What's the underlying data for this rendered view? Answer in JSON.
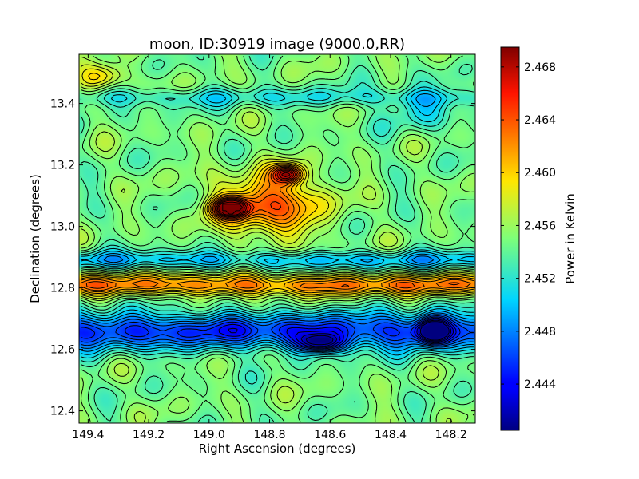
{
  "chart_data": {
    "type": "heatmap",
    "title": "moon, ID:30919 image (9000.0,RR)",
    "xlabel": "Right Ascension (degrees)",
    "ylabel": "Declination (degrees)",
    "xlim": [
      149.43,
      148.12
    ],
    "ylim": [
      12.36,
      13.56
    ],
    "x_ticks": [
      {
        "value": 149.4,
        "label": "149.4"
      },
      {
        "value": 149.2,
        "label": "149.2"
      },
      {
        "value": 149.0,
        "label": "149.0"
      },
      {
        "value": 148.8,
        "label": "148.8"
      },
      {
        "value": 148.6,
        "label": "148.6"
      },
      {
        "value": 148.4,
        "label": "148.4"
      },
      {
        "value": 148.2,
        "label": "148.2"
      }
    ],
    "y_ticks": [
      {
        "value": 12.4,
        "label": "12.4"
      },
      {
        "value": 12.6,
        "label": "12.6"
      },
      {
        "value": 12.8,
        "label": "12.8"
      },
      {
        "value": 13.0,
        "label": "13.0"
      },
      {
        "value": 13.2,
        "label": "13.2"
      },
      {
        "value": 13.4,
        "label": "13.4"
      }
    ],
    "colorbar": {
      "label": "Power in Kelvin",
      "range": [
        2.4405,
        2.4695
      ],
      "colormap": "jet",
      "ticks": [
        {
          "value": 2.444,
          "label": "2.444"
        },
        {
          "value": 2.448,
          "label": "2.448"
        },
        {
          "value": 2.452,
          "label": "2.452"
        },
        {
          "value": 2.456,
          "label": "2.456"
        },
        {
          "value": 2.46,
          "label": "2.460"
        },
        {
          "value": 2.464,
          "label": "2.464"
        },
        {
          "value": 2.468,
          "label": "2.468"
        }
      ]
    },
    "contours": true,
    "field_features": [
      {
        "kind": "band",
        "dec": 12.66,
        "width": 0.06,
        "value": 2.4455
      },
      {
        "kind": "band",
        "dec": 12.81,
        "width": 0.035,
        "value": 2.4625
      },
      {
        "kind": "band",
        "dec": 12.89,
        "width": 0.03,
        "value": 2.45
      },
      {
        "kind": "band",
        "dec": 13.42,
        "width": 0.03,
        "value": 2.452
      },
      {
        "kind": "blob",
        "ra": 148.8,
        "dec": 13.07,
        "ra_width": 0.17,
        "dec_width": 0.1,
        "value": 2.464
      },
      {
        "kind": "blob",
        "ra": 148.93,
        "dec": 13.06,
        "ra_width": 0.06,
        "dec_width": 0.03,
        "value": 2.468
      },
      {
        "kind": "blob",
        "ra": 148.74,
        "dec": 13.17,
        "ra_width": 0.05,
        "dec_width": 0.03,
        "value": 2.466
      },
      {
        "kind": "blob",
        "ra": 148.63,
        "dec": 12.62,
        "ra_width": 0.08,
        "dec_width": 0.03,
        "value": 2.4455
      },
      {
        "kind": "blob",
        "ra": 148.26,
        "dec": 12.66,
        "ra_width": 0.05,
        "dec_width": 0.04,
        "value": 2.444
      },
      {
        "kind": "blob",
        "ra": 149.35,
        "dec": 13.49,
        "ra_width": 0.08,
        "dec_width": 0.04,
        "value": 2.46
      },
      {
        "kind": "blob",
        "ra": 148.3,
        "dec": 13.38,
        "ra_width": 0.1,
        "dec_width": 0.07,
        "value": 2.4515
      }
    ]
  }
}
